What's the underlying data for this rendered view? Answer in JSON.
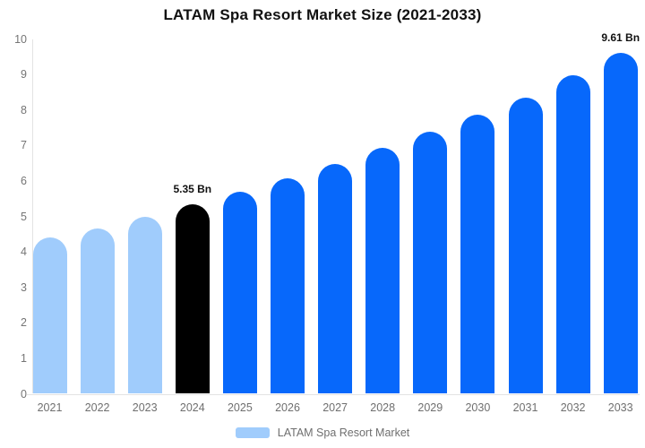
{
  "chart_data": {
    "type": "bar",
    "title": "LATAM Spa Resort Market Size (2021-2033)",
    "unit": "Bn",
    "categories": [
      "2021",
      "2022",
      "2023",
      "2024",
      "2025",
      "2026",
      "2027",
      "2028",
      "2029",
      "2030",
      "2031",
      "2032",
      "2033"
    ],
    "values": [
      4.4,
      4.67,
      4.99,
      5.35,
      5.7,
      6.08,
      6.48,
      6.93,
      7.38,
      7.86,
      8.35,
      8.99,
      9.61
    ],
    "ylim": [
      0,
      10
    ],
    "y_ticks": [
      0,
      1,
      2,
      3,
      4,
      5,
      6,
      7,
      8,
      9,
      10
    ],
    "grid": "off",
    "bar_colors": [
      "#A0CCFC",
      "#A0CCFC",
      "#A0CCFC",
      "#000000",
      "#0768FB",
      "#0768FB",
      "#0768FB",
      "#0768FB",
      "#0768FB",
      "#0768FB",
      "#0768FB",
      "#0768FB",
      "#0768FB"
    ],
    "annotations": [
      {
        "category": "2024",
        "text": "5.35 Bn"
      },
      {
        "category": "2033",
        "text": "9.61 Bn"
      }
    ],
    "legend": {
      "position": "bottom",
      "label": "LATAM Spa Resort Market",
      "marker_color": "#A0CCFC"
    },
    "colors": {
      "historical": "#A0CCFC",
      "base_year": "#000000",
      "forecast": "#0768FB",
      "axis_label": "#757575",
      "axis_line": "#E3E3E3",
      "title": "#111111",
      "background": "#FFFFFF"
    }
  }
}
